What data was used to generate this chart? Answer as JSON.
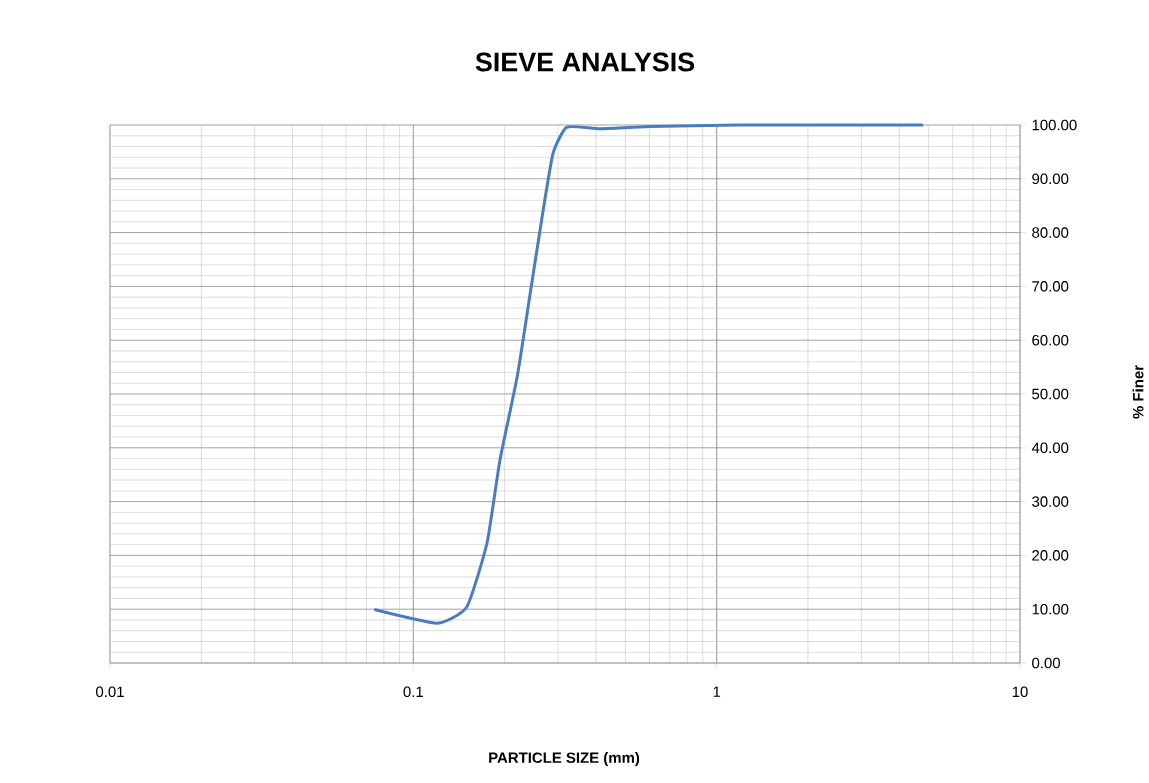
{
  "chart_data": {
    "type": "line",
    "title": "SIEVE ANALYSIS",
    "xlabel": "PARTICLE SIZE (mm)",
    "ylabel": "% Finer",
    "log": "x",
    "grid": true,
    "color": "#4a7ebb",
    "line_style": "solid",
    "xlim": [
      0.01,
      10
    ],
    "xticks": [
      0.01,
      0.1,
      1,
      10
    ],
    "ylim": [
      0,
      100
    ],
    "yticks": [
      {
        "value": 0,
        "label": "0.00"
      },
      {
        "value": 10,
        "label": "10.00"
      },
      {
        "value": 20,
        "label": "20.00"
      },
      {
        "value": 30,
        "label": "30.00"
      },
      {
        "value": 40,
        "label": "40.00"
      },
      {
        "value": 50,
        "label": "50.00"
      },
      {
        "value": 60,
        "label": "60.00"
      },
      {
        "value": 70,
        "label": "70.00"
      },
      {
        "value": 80,
        "label": "80.00"
      },
      {
        "value": 90,
        "label": "90.00"
      },
      {
        "value": 100,
        "label": "100.00"
      }
    ],
    "x": [
      0.075,
      0.12,
      0.15,
      0.175,
      0.193,
      0.22,
      0.243,
      0.268,
      0.289,
      0.321,
      0.413,
      0.6,
      1.18,
      2.36,
      4.75
    ],
    "values": [
      9.9,
      7.4,
      10.4,
      22.3,
      37.7,
      53.2,
      68.8,
      84.2,
      94.8,
      99.6,
      99.3,
      99.7,
      100,
      100,
      100
    ]
  }
}
